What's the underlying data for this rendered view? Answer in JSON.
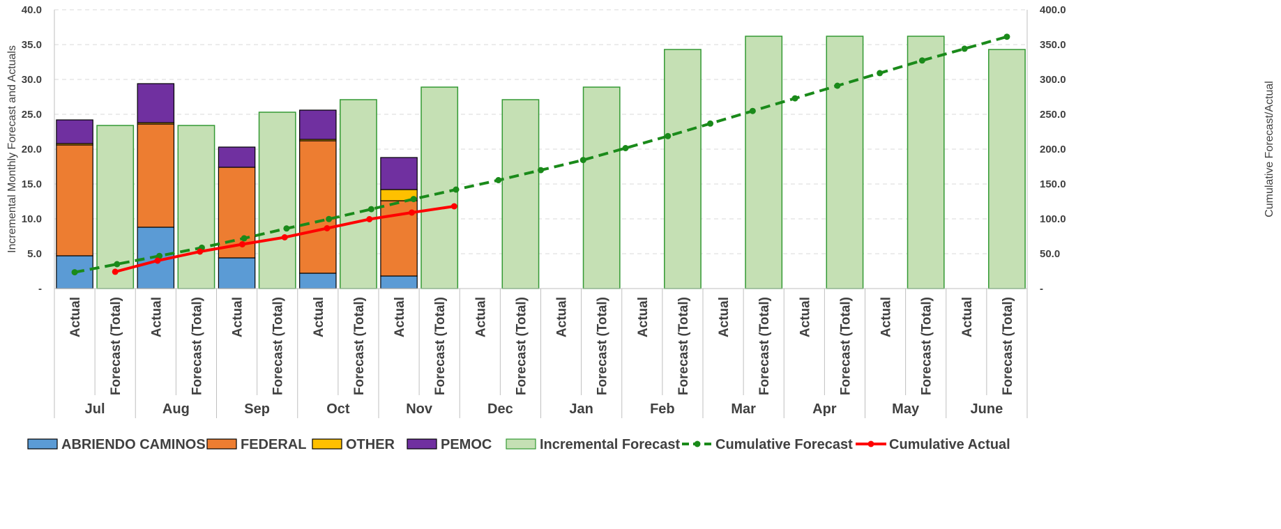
{
  "chart_data": {
    "type": "bar",
    "stacked": true,
    "months": [
      "Jul",
      "Aug",
      "Sep",
      "Oct",
      "Nov",
      "Dec",
      "Jan",
      "Feb",
      "Mar",
      "Apr",
      "May",
      "June"
    ],
    "subcategories": [
      "Actual",
      "Forecast (Total)"
    ],
    "y_left": {
      "label": "Incremental Monthly Forecast and Actuals",
      "min": 0,
      "max": 40,
      "step": 5,
      "tick_labels": [
        "-",
        "5.0",
        "10.0",
        "15.0",
        "20.0",
        "25.0",
        "30.0",
        "35.0",
        "40.0"
      ]
    },
    "y_right": {
      "label": "Cumulative Forecast/Actual",
      "min": 0,
      "max": 400,
      "step": 50,
      "tick_labels": [
        "-",
        "50.0",
        "100.0",
        "150.0",
        "200.0",
        "250.0",
        "300.0",
        "350.0",
        "400.0"
      ]
    },
    "grid": true,
    "legend_position": "bottom",
    "actual_series": [
      {
        "name": "ABRIENDO CAMINOS",
        "color": "#5b9bd5",
        "values": [
          4.7,
          8.8,
          4.4,
          2.2,
          1.8,
          0,
          0,
          0,
          0,
          0,
          0,
          0
        ]
      },
      {
        "name": "FEDERAL",
        "color": "#ed7d31",
        "values": [
          15.9,
          14.8,
          13.0,
          19.0,
          10.8,
          0,
          0,
          0,
          0,
          0,
          0,
          0
        ]
      },
      {
        "name": "OTHER",
        "color": "#ffc000",
        "values": [
          0.2,
          0.2,
          0,
          0.2,
          1.6,
          0,
          0,
          0,
          0,
          0,
          0,
          0
        ]
      },
      {
        "name": "PEMOC",
        "color": "#7030a0",
        "values": [
          3.4,
          5.6,
          2.9,
          4.2,
          4.6,
          0,
          0,
          0,
          0,
          0,
          0,
          0
        ]
      }
    ],
    "forecast_series": {
      "name": "Incremental Forecast",
      "color": "#c5e0b4",
      "border": "#339933",
      "values": [
        23.4,
        23.4,
        25.3,
        27.1,
        28.9,
        27.1,
        28.9,
        34.3,
        36.2,
        36.2,
        36.2,
        34.3
      ]
    },
    "cumulative_forecast": {
      "name": "Cumulative Forecast",
      "color": "#1a8a1a",
      "style": "dashed",
      "values": [
        23.4,
        35.0,
        46.8,
        58.6,
        72.1,
        86.2,
        99.7,
        113.9,
        128.4,
        142.0,
        155.5,
        169.9,
        184.4,
        201.5,
        218.7,
        236.7,
        254.8,
        272.9,
        291.0,
        309.1,
        327.2,
        344.1,
        361.3
      ]
    },
    "cumulative_actual": {
      "name": "Cumulative Actual",
      "color": "#ff0000",
      "style": "solid",
      "values": [
        24.1,
        40.0,
        53.0,
        63.5,
        73.5,
        86.5,
        99.5,
        109.0,
        118.0
      ]
    }
  }
}
